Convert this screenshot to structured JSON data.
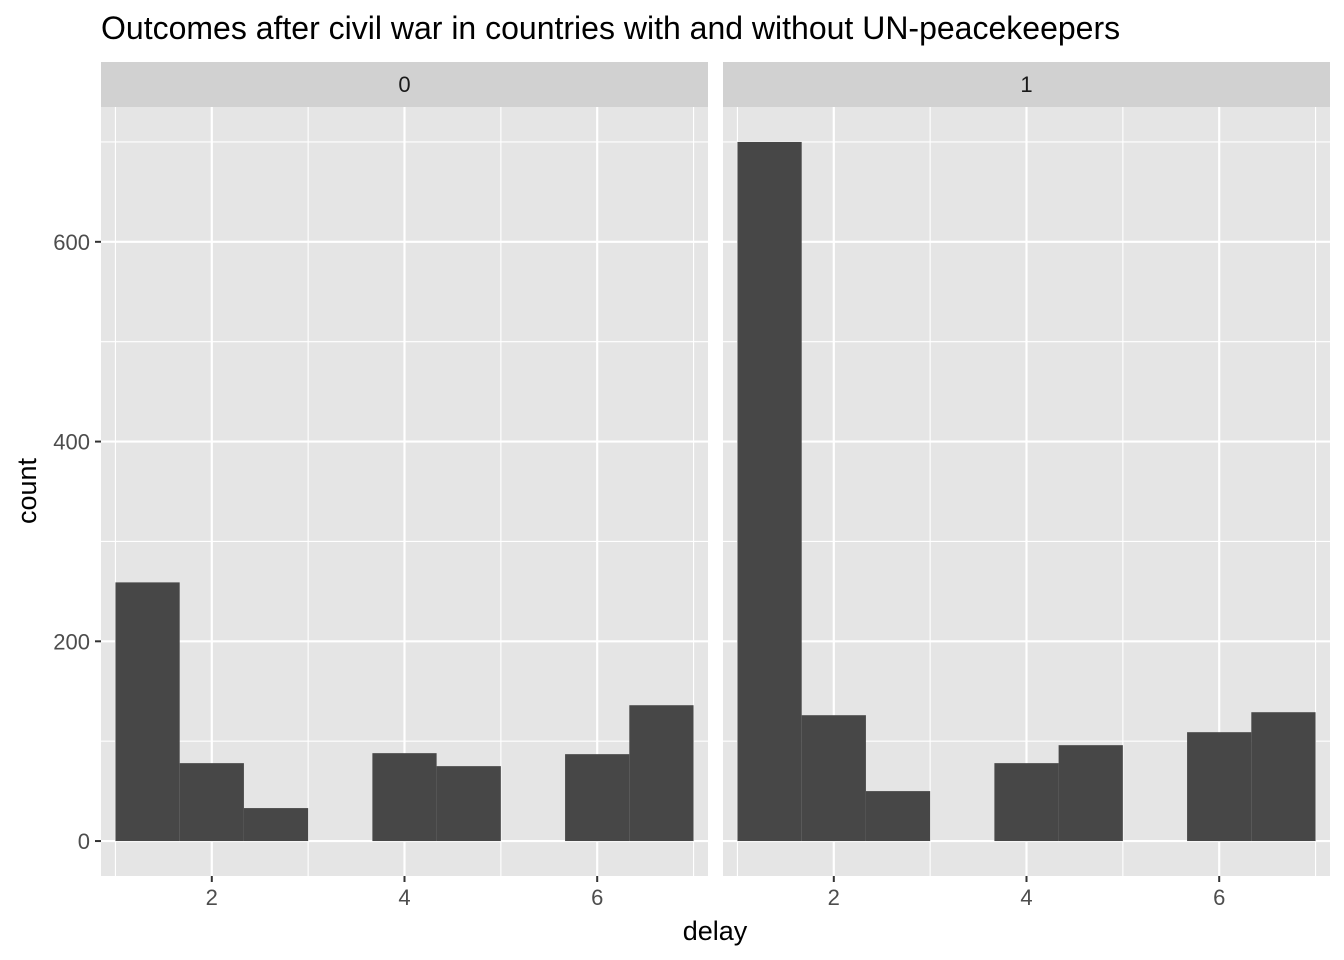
{
  "chart_data": {
    "type": "bar",
    "title": "Outcomes after civil war in countries with and without UN-peacekeepers",
    "xlabel": "delay",
    "ylabel": "count",
    "xlim": [
      0.85,
      7.15
    ],
    "ylim": [
      -35,
      735
    ],
    "xticks": [
      2,
      4,
      6
    ],
    "xticklabels": [
      "2",
      "4",
      "6"
    ],
    "yticks": [
      0,
      200,
      400,
      600
    ],
    "yticklabels": [
      "0",
      "200",
      "400",
      "600"
    ],
    "bin_width": 0.6667,
    "grid": true,
    "legend": "none",
    "facets": [
      {
        "label": "0",
        "bins": [
          {
            "x0": 1.0,
            "x1": 1.6667,
            "count": 259
          },
          {
            "x0": 1.6667,
            "x1": 2.3333,
            "count": 78
          },
          {
            "x0": 2.3333,
            "x1": 3.0,
            "count": 33
          },
          {
            "x0": 3.0,
            "x1": 3.6667,
            "count": 0
          },
          {
            "x0": 3.6667,
            "x1": 4.3333,
            "count": 88
          },
          {
            "x0": 4.3333,
            "x1": 5.0,
            "count": 75
          },
          {
            "x0": 5.0,
            "x1": 5.6667,
            "count": 0
          },
          {
            "x0": 5.6667,
            "x1": 6.3333,
            "count": 87
          },
          {
            "x0": 6.3333,
            "x1": 7.0,
            "count": 136
          }
        ]
      },
      {
        "label": "1",
        "bins": [
          {
            "x0": 1.0,
            "x1": 1.6667,
            "count": 700
          },
          {
            "x0": 1.6667,
            "x1": 2.3333,
            "count": 126
          },
          {
            "x0": 2.3333,
            "x1": 3.0,
            "count": 50
          },
          {
            "x0": 3.0,
            "x1": 3.6667,
            "count": 0
          },
          {
            "x0": 3.6667,
            "x1": 4.3333,
            "count": 78
          },
          {
            "x0": 4.3333,
            "x1": 5.0,
            "count": 96
          },
          {
            "x0": 5.0,
            "x1": 5.6667,
            "count": 0
          },
          {
            "x0": 5.6667,
            "x1": 6.3333,
            "count": 109
          },
          {
            "x0": 6.3333,
            "x1": 7.0,
            "count": 129
          }
        ]
      }
    ],
    "colors": {
      "bar_fill": "#474747",
      "panel_background": "#e5e5e5",
      "strip_background": "#d1d1d1",
      "grid_line": "#ffffff",
      "tick_mark": "#333333"
    }
  }
}
